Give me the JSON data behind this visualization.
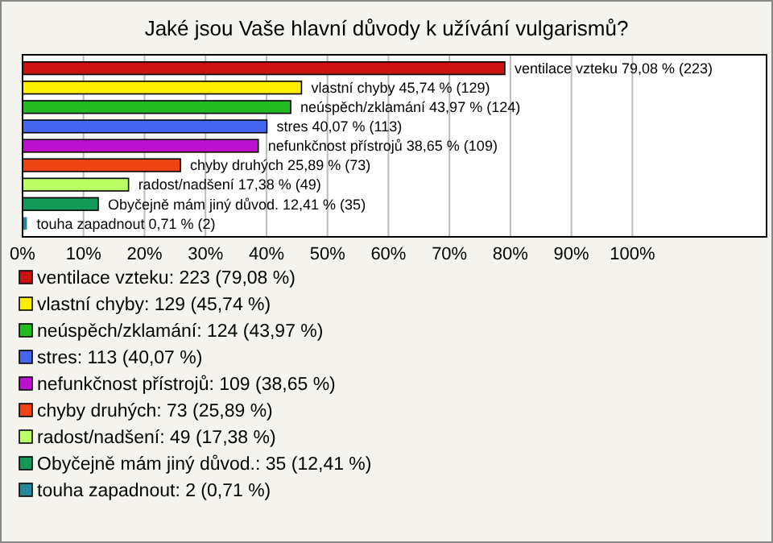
{
  "chart_data": {
    "type": "bar",
    "orientation": "horizontal",
    "title": "Jaké jsou Vaše hlavní důvody k užívání vulgarismů?",
    "categories": [
      null,
      null,
      null,
      null,
      null,
      null,
      null,
      null,
      null
    ],
    "xlim": [
      0,
      122
    ],
    "xticks": [
      {
        "value": 0,
        "label": "0%"
      },
      {
        "value": 10,
        "label": "10%"
      },
      {
        "value": 20,
        "label": "20%"
      },
      {
        "value": 30,
        "label": "30%"
      },
      {
        "value": 40,
        "label": "40%"
      },
      {
        "value": 50,
        "label": "50%"
      },
      {
        "value": 60,
        "label": "60%"
      },
      {
        "value": 70,
        "label": "70%"
      },
      {
        "value": 80,
        "label": "80%"
      },
      {
        "value": 90,
        "label": "90%"
      },
      {
        "value": 100,
        "label": "100%"
      }
    ],
    "grid": "x",
    "legend": "bottom",
    "series": [
      {
        "name": "ventilace vzteku: 223 (79,08 %)",
        "color": "#cc1111",
        "values": [
          79.08,
          null,
          null,
          null,
          null,
          null,
          null,
          null,
          null
        ],
        "value_labels": [
          "ventilace vzteku 79,08 % (223)",
          null,
          null,
          null,
          null,
          null,
          null,
          null,
          null
        ]
      },
      {
        "name": "vlastní chyby: 129 (45,74 %)",
        "color": "#ffee00",
        "values": [
          null,
          45.74,
          null,
          null,
          null,
          null,
          null,
          null,
          null
        ],
        "value_labels": [
          null,
          "vlastní chyby 45,74 % (129)",
          null,
          null,
          null,
          null,
          null,
          null,
          null
        ]
      },
      {
        "name": "neúspěch/zklamání: 124 (43,97 %)",
        "color": "#22bb22",
        "values": [
          null,
          null,
          43.97,
          null,
          null,
          null,
          null,
          null,
          null
        ],
        "value_labels": [
          null,
          null,
          "neúspěch/zklamání 43,97 % (124)",
          null,
          null,
          null,
          null,
          null,
          null
        ]
      },
      {
        "name": "stres: 113 (40,07 %)",
        "color": "#4466ee",
        "values": [
          null,
          null,
          null,
          40.07,
          null,
          null,
          null,
          null,
          null
        ],
        "value_labels": [
          null,
          null,
          null,
          "stres 40,07 % (113)",
          null,
          null,
          null,
          null,
          null
        ]
      },
      {
        "name": "nefunkčnost přístrojů: 109 (38,65 %)",
        "color": "#bb11cc",
        "values": [
          null,
          null,
          null,
          null,
          38.65,
          null,
          null,
          null,
          null
        ],
        "value_labels": [
          null,
          null,
          null,
          null,
          "nefunkčnost přístrojů 38,65 % (109)",
          null,
          null,
          null,
          null
        ]
      },
      {
        "name": "chyby druhých: 73 (25,89 %)",
        "color": "#ee4411",
        "values": [
          null,
          null,
          null,
          null,
          null,
          25.89,
          null,
          null,
          null
        ],
        "value_labels": [
          null,
          null,
          null,
          null,
          null,
          "chyby druhých 25,89 % (73)",
          null,
          null,
          null
        ]
      },
      {
        "name": "radost/nadšení: 49 (17,38 %)",
        "color": "#bbff66",
        "values": [
          null,
          null,
          null,
          null,
          null,
          null,
          17.38,
          null,
          null
        ],
        "value_labels": [
          null,
          null,
          null,
          null,
          null,
          null,
          "radost/nadšení 17,38 % (49)",
          null,
          null
        ]
      },
      {
        "name": "Obyčejně mám jiný důvod.: 35 (12,41 %)",
        "color": "#119955",
        "values": [
          null,
          null,
          null,
          null,
          null,
          null,
          null,
          12.41,
          null
        ],
        "value_labels": [
          null,
          null,
          null,
          null,
          null,
          null,
          null,
          "Obyčejně mám jiný důvod. 12,41 % (35)",
          null
        ]
      },
      {
        "name": "touha zapadnout: 2 (0,71 %)",
        "color": "#228899",
        "values": [
          null,
          null,
          null,
          null,
          null,
          null,
          null,
          null,
          0.71
        ],
        "value_labels": [
          null,
          null,
          null,
          null,
          null,
          null,
          null,
          null,
          "touha zapadnout 0,71 % (2)"
        ]
      }
    ]
  }
}
